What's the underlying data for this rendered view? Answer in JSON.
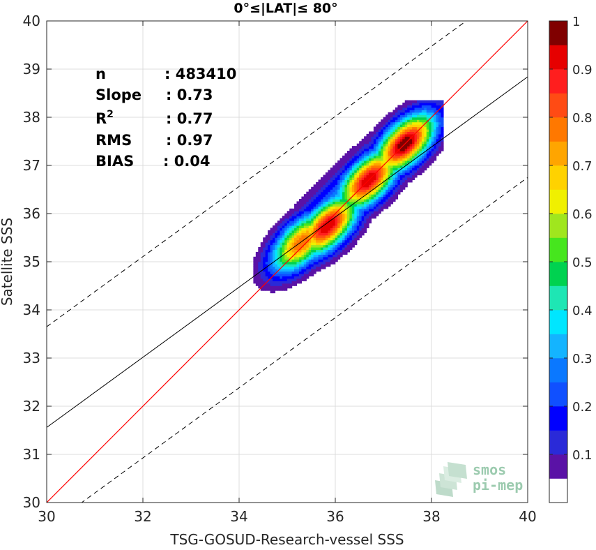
{
  "chart_data": {
    "type": "scatter",
    "title": "0°≤|LAT|≤ 80°",
    "xlabel": "TSG-GOSUD-Research-vessel SSS",
    "ylabel": "Satellite SSS",
    "xlim": [
      30,
      40
    ],
    "ylim": [
      30,
      40
    ],
    "xticks": [
      "30",
      "32",
      "34",
      "36",
      "38",
      "40"
    ],
    "yticks": [
      "30",
      "31",
      "32",
      "33",
      "34",
      "35",
      "36",
      "37",
      "38",
      "39",
      "40"
    ],
    "grid": true,
    "stats": [
      {
        "name": "n",
        "value": ": 483410"
      },
      {
        "name": "Slope",
        "value": ": 0.73"
      },
      {
        "name": "R",
        "sup": "2",
        "value": ": 0.77"
      },
      {
        "name": "RMS",
        "value": ": 0.97"
      },
      {
        "name": "BIAS",
        "value": ": 0.04"
      }
    ],
    "lines": {
      "identity": {
        "x": [
          30,
          40
        ],
        "y": [
          30,
          40
        ],
        "color": "#ff0000"
      },
      "fit": {
        "x": [
          30,
          40
        ],
        "y": [
          31.56,
          38.84
        ],
        "color": "#000000"
      },
      "upper_bound": {
        "x": [
          30,
          40
        ],
        "y": [
          33.65,
          40.93
        ],
        "style": "dashed"
      },
      "lower_bound": {
        "x": [
          30,
          40
        ],
        "y": [
          29.47,
          36.75
        ],
        "style": "dashed"
      }
    },
    "density_contours": {
      "levels": [
        0.05,
        0.1,
        0.15,
        0.2,
        0.25,
        0.3,
        0.35,
        0.4,
        0.45,
        0.5,
        0.55,
        0.6,
        0.65,
        0.7,
        0.75,
        0.8,
        0.85,
        0.9,
        0.95
      ],
      "peaks": [
        {
          "x": 35.3,
          "y": 35.4,
          "density": 0.8
        },
        {
          "x": 35.85,
          "y": 35.75,
          "density": 0.95
        },
        {
          "x": 36.7,
          "y": 36.7,
          "density": 0.95
        },
        {
          "x": 37.45,
          "y": 37.45,
          "density": 1.0
        }
      ]
    },
    "colorbar": {
      "ticks": [
        "0.1",
        "0.2",
        "0.3",
        "0.4",
        "0.5",
        "0.6",
        "0.7",
        "0.8",
        "0.9",
        "1"
      ],
      "colors": [
        "#ffffff",
        "#5a12a6",
        "#2a2ad8",
        "#0000ff",
        "#1050ff",
        "#0a78ff",
        "#14b4ff",
        "#00e6ff",
        "#1ee6b4",
        "#00d250",
        "#46e61e",
        "#a0e61e",
        "#f0f000",
        "#ffd200",
        "#ffa500",
        "#ff7800",
        "#ff4b14",
        "#ff1e1e",
        "#e60000",
        "#800000"
      ]
    },
    "logo": {
      "line1": "smos",
      "line2": "pi-mep"
    }
  }
}
